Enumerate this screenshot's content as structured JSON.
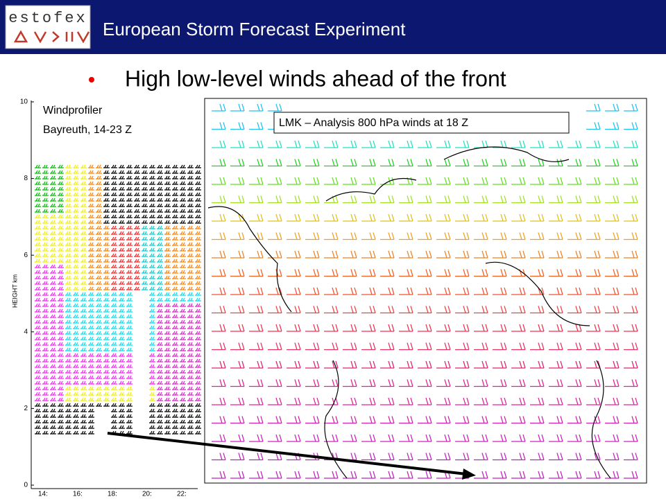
{
  "header": {
    "logo": "estofex",
    "title": "European Storm Forecast Experiment"
  },
  "bullet": "High low-level winds ahead of the front",
  "windprofiler": {
    "caption": [
      "Windprofiler",
      "Bayreuth, 14-23 Z"
    ],
    "y_axis_label": "HEIGHT km",
    "y_ticks": [
      "0",
      "2",
      "4",
      "6",
      "8",
      "10"
    ],
    "x_ticks": [
      "14:",
      "16:",
      "18:",
      "20:",
      "22:"
    ]
  },
  "map": {
    "caption": "LMK – Analysis 800 hPa winds at 18 Z"
  }
}
